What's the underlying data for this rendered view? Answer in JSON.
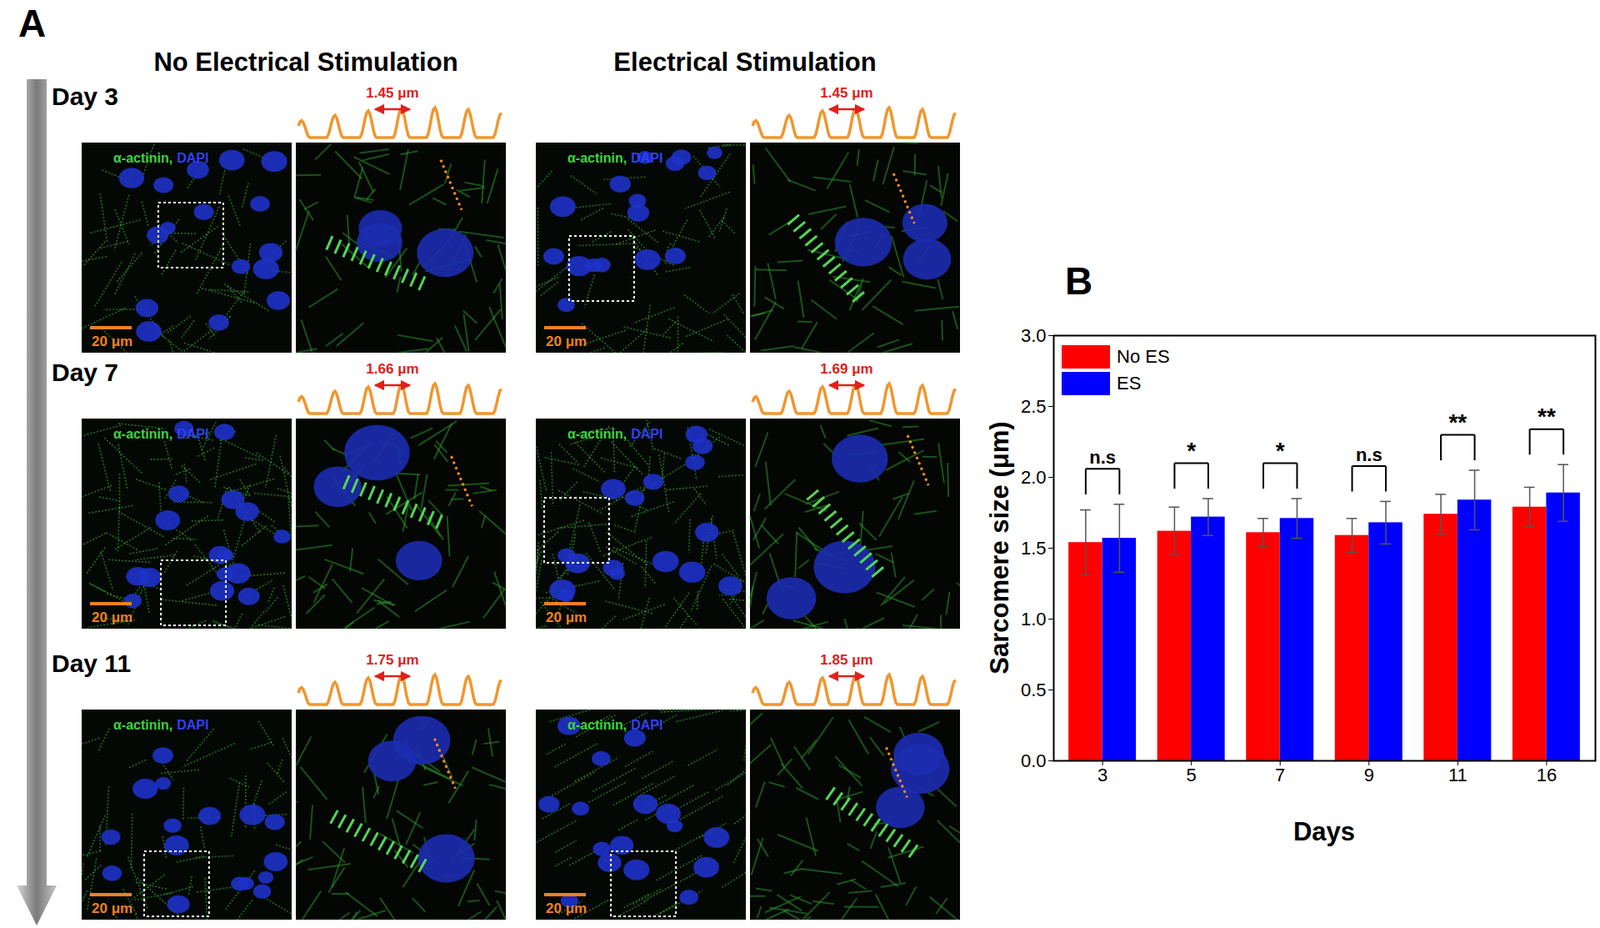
{
  "panel_a": {
    "label": "A",
    "columns": [
      "No Electrical Stimulation",
      "Electrical Stimulation"
    ],
    "stain": [
      "α-actinin,",
      "DAPI"
    ],
    "scale_bar": "20 μm",
    "rows": [
      {
        "day": "Day 3",
        "measurements": [
          "1.45 μm",
          "1.45 μm"
        ]
      },
      {
        "day": "Day 7",
        "measurements": [
          "1.66 μm",
          "1.69 μm"
        ]
      },
      {
        "day": "Day 11",
        "measurements": [
          "1.75 μm",
          "1.85 μm"
        ]
      }
    ]
  },
  "panel_b": {
    "label": "B"
  },
  "chart_data": {
    "type": "bar",
    "x_label": "Days",
    "y_label": "Sarcomere size (μm)",
    "categories": [
      "3",
      "5",
      "7",
      "9",
      "11",
      "16"
    ],
    "series": [
      {
        "name": "No ES",
        "color": "#ff0000",
        "values": [
          1.54,
          1.62,
          1.61,
          1.59,
          1.74,
          1.79
        ],
        "errors": [
          0.23,
          0.17,
          0.1,
          0.12,
          0.14,
          0.14
        ]
      },
      {
        "name": "ES",
        "color": "#0000ff",
        "values": [
          1.57,
          1.72,
          1.71,
          1.68,
          1.84,
          1.89
        ],
        "errors": [
          0.24,
          0.13,
          0.14,
          0.15,
          0.21,
          0.2
        ]
      }
    ],
    "significance": [
      "n.s",
      "*",
      "*",
      "n.s",
      "**",
      "**"
    ],
    "ylim": [
      0,
      3
    ],
    "yticks": [
      {
        "value": 0,
        "label": "0.0"
      },
      {
        "value": 0.5,
        "label": "0.5"
      },
      {
        "value": 1,
        "label": "1.0"
      },
      {
        "value": 1.5,
        "label": "1.5"
      },
      {
        "value": 2,
        "label": "2.0"
      },
      {
        "value": 2.5,
        "label": "2.5"
      },
      {
        "value": 3,
        "label": "3.0"
      }
    ],
    "legend": "upper left",
    "grid": false
  }
}
